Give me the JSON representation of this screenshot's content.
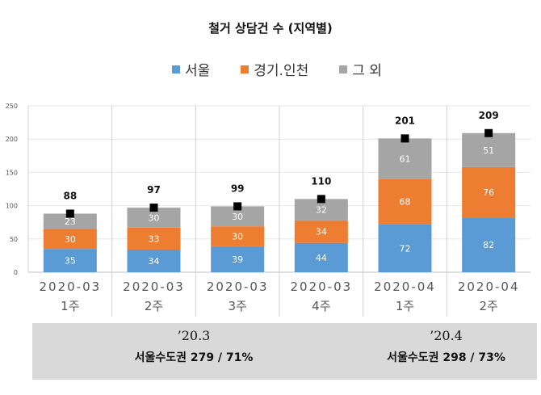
{
  "chart_data": {
    "type": "bar",
    "stacked": true,
    "title": "철거 상담건 수 (지역별)",
    "categories": [
      [
        "2020-03",
        "1주"
      ],
      [
        "2020-03",
        "2주"
      ],
      [
        "2020-03",
        "3주"
      ],
      [
        "2020-03",
        "4주"
      ],
      [
        "2020-04",
        "1주"
      ],
      [
        "2020-04",
        "2주"
      ]
    ],
    "series": [
      {
        "name": "서울",
        "color": "#5b9bd5",
        "values": [
          35,
          34,
          39,
          44,
          72,
          82
        ]
      },
      {
        "name": "경기.인천",
        "color": "#ed7d31",
        "values": [
          30,
          33,
          30,
          34,
          68,
          76
        ]
      },
      {
        "name": "그 외",
        "color": "#a5a5a5",
        "values": [
          23,
          30,
          30,
          32,
          61,
          51
        ]
      }
    ],
    "totals": [
      88,
      97,
      99,
      110,
      201,
      209
    ],
    "ylim": [
      0,
      250
    ],
    "yticks": [
      0,
      50,
      100,
      150,
      200,
      250
    ],
    "legend_position": "top"
  },
  "summary": [
    {
      "period": "’20.3",
      "metro": "서울수도권 279 / 71%"
    },
    {
      "period": "’20.4",
      "metro": "서울수도권 298 / 73%"
    }
  ]
}
